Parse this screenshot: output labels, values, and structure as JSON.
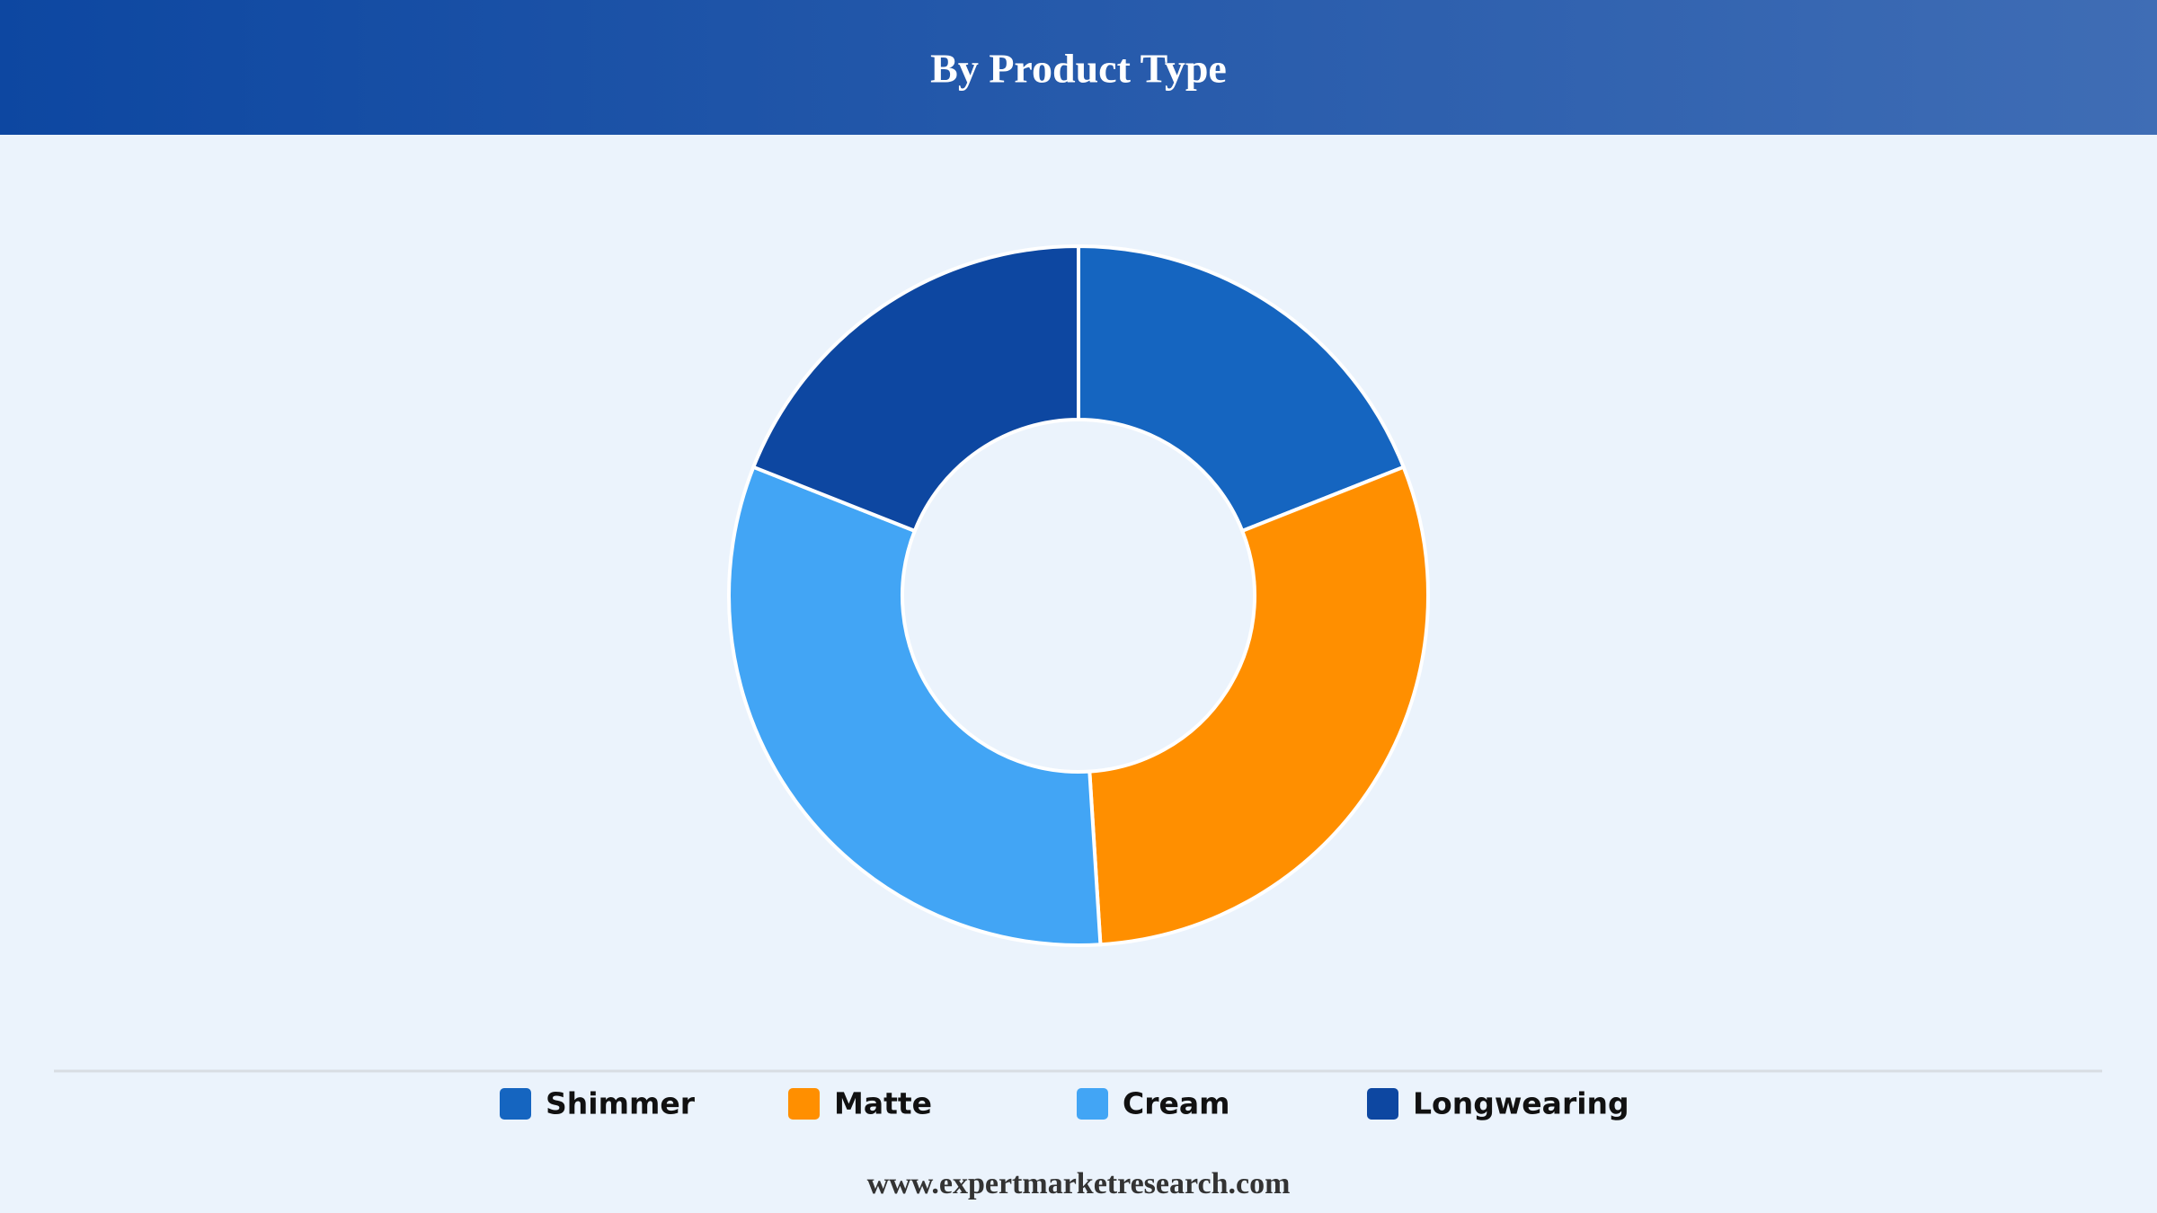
{
  "chart_data": {
    "type": "pie",
    "title": "By Product Type",
    "categories": [
      "Shimmer",
      "Matte",
      "Cream",
      "Longwearing"
    ],
    "values": [
      19,
      30,
      32,
      19
    ],
    "colors": [
      "#1565c0",
      "#ff8f00",
      "#42a5f5",
      "#0d47a1"
    ],
    "legend": "bottom",
    "source": "www.expertmarketresearch.com"
  }
}
